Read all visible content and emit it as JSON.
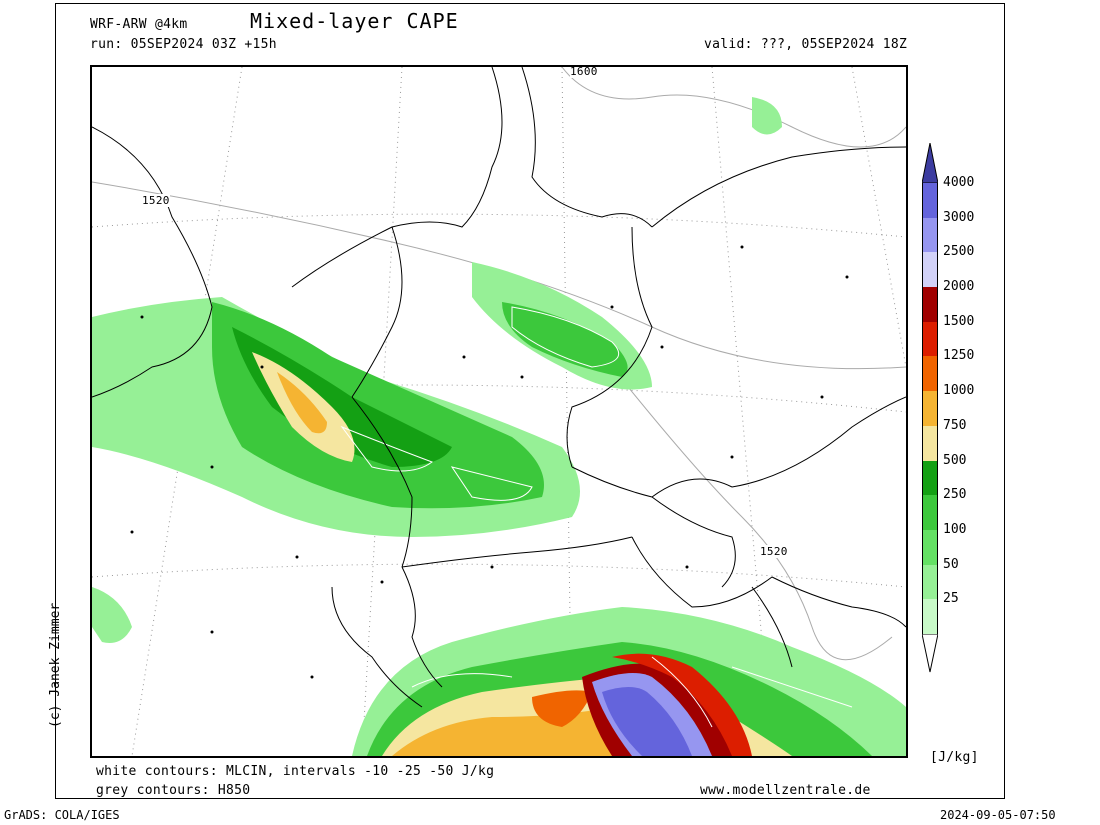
{
  "header": {
    "model": "WRF-ARW @4km",
    "title": "Mixed-layer CAPE",
    "run": "run: 05SEP2024 03Z +15h",
    "valid": "valid: ???, 05SEP2024 18Z"
  },
  "footer": {
    "white_contours": "white contours: MLCIN, intervals -10 -25 -50 J/kg",
    "grey_contours": "grey contours: H850",
    "website": "www.modellzentrale.de",
    "grads": "GrADS: COLA/IGES",
    "timestamp": "2024-09-05-07:50"
  },
  "credit": "(c) Janek Zimmer",
  "map_labels": {
    "contour_top": "1600",
    "contour_left": "1520",
    "contour_right": "1520"
  },
  "colorbar": {
    "unit": "[J/kg]",
    "levels": [
      {
        "label": "4000",
        "color": "#6464dc"
      },
      {
        "label": "3000",
        "color": "#9696f0"
      },
      {
        "label": "2500",
        "color": "#d2d2f8"
      },
      {
        "label": "2000",
        "color": "#a00000"
      },
      {
        "label": "1500",
        "color": "#dc1e00"
      },
      {
        "label": "1250",
        "color": "#f06400"
      },
      {
        "label": "1000",
        "color": "#f5b432"
      },
      {
        "label": "750",
        "color": "#f5e6a0"
      },
      {
        "label": "500",
        "color": "#14a014"
      },
      {
        "label": "250",
        "color": "#3cc83c"
      },
      {
        "label": "100",
        "color": "#64e164"
      },
      {
        "label": "50",
        "color": "#96f096"
      },
      {
        "label": "25",
        "color": "#c8fac8"
      }
    ],
    "top_color": "#3c3ca0"
  }
}
